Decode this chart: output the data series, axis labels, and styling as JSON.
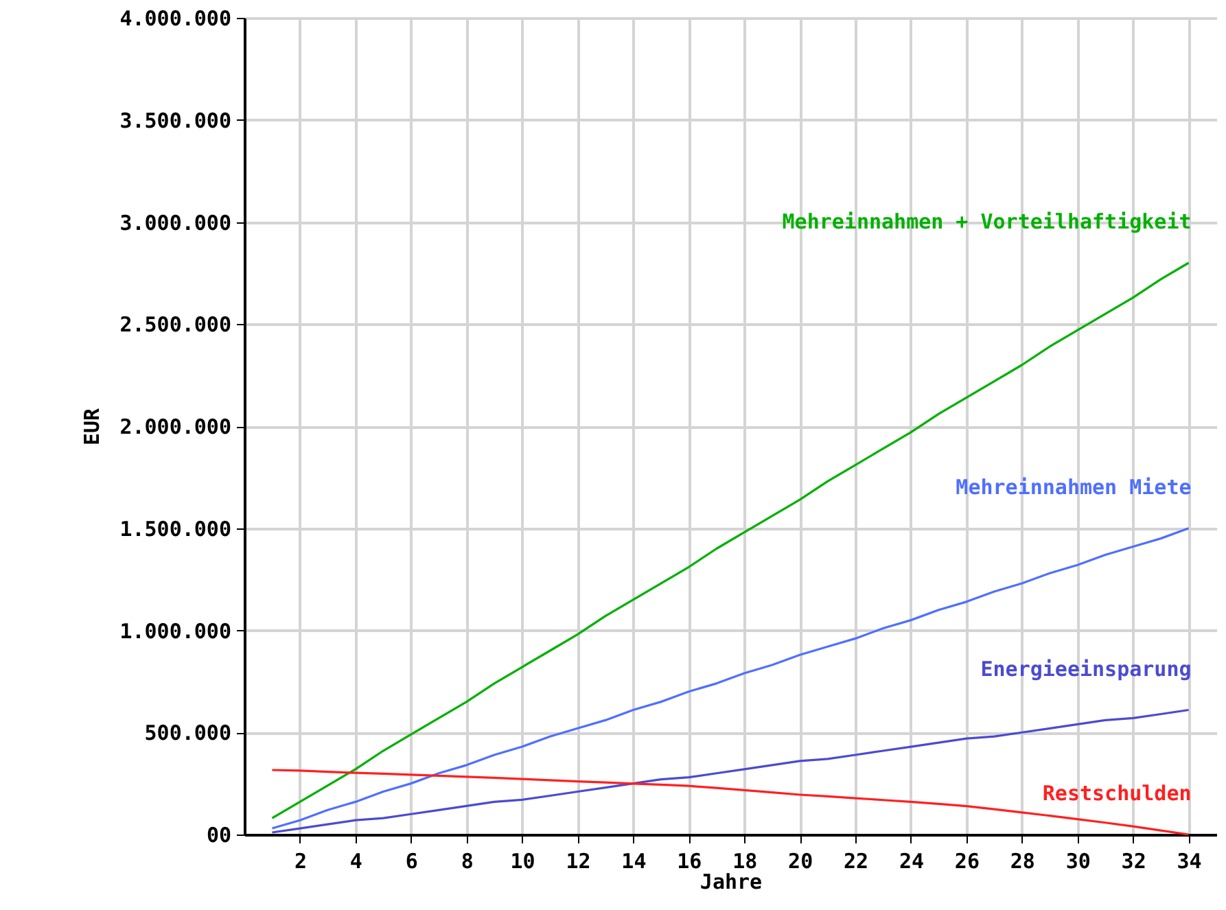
{
  "chart_data": {
    "type": "line",
    "xlabel": "Jahre",
    "ylabel": "EUR",
    "x": [
      1,
      2,
      3,
      4,
      5,
      6,
      7,
      8,
      9,
      10,
      11,
      12,
      13,
      14,
      15,
      16,
      17,
      18,
      19,
      20,
      21,
      22,
      23,
      24,
      25,
      26,
      27,
      28,
      29,
      30,
      31,
      32,
      33,
      34
    ],
    "series": [
      {
        "name": "Mehreinnahmen + Vorteilhaftigkeit",
        "color": "#00b000",
        "values": [
          80000,
          160000,
          240000,
          320000,
          410000,
          490000,
          570000,
          650000,
          740000,
          820000,
          900000,
          980000,
          1070000,
          1150000,
          1230000,
          1310000,
          1400000,
          1480000,
          1560000,
          1640000,
          1730000,
          1810000,
          1890000,
          1970000,
          2060000,
          2140000,
          2220000,
          2300000,
          2390000,
          2470000,
          2550000,
          2630000,
          2720000,
          2800000
        ]
      },
      {
        "name": "Mehreinnahmen Miete",
        "color": "#4f6fff",
        "values": [
          30000,
          70000,
          120000,
          160000,
          210000,
          250000,
          300000,
          340000,
          390000,
          430000,
          480000,
          520000,
          560000,
          610000,
          650000,
          700000,
          740000,
          790000,
          830000,
          880000,
          920000,
          960000,
          1010000,
          1050000,
          1100000,
          1140000,
          1190000,
          1230000,
          1280000,
          1320000,
          1370000,
          1410000,
          1450000,
          1500000
        ]
      },
      {
        "name": "Energieeinsparung",
        "color": "#4b4bd0",
        "values": [
          10000,
          30000,
          50000,
          70000,
          80000,
          100000,
          120000,
          140000,
          160000,
          170000,
          190000,
          210000,
          230000,
          250000,
          270000,
          280000,
          300000,
          320000,
          340000,
          360000,
          370000,
          390000,
          410000,
          430000,
          450000,
          470000,
          480000,
          500000,
          520000,
          540000,
          560000,
          570000,
          590000,
          610000
        ]
      },
      {
        "name": "Restschulden",
        "color": "#ff2020",
        "values": [
          316000,
          313000,
          307000,
          302000,
          298000,
          293000,
          288000,
          283000,
          278000,
          272000,
          266000,
          260000,
          255000,
          249000,
          244000,
          238000,
          228000,
          217000,
          206000,
          195000,
          187000,
          178000,
          169000,
          160000,
          150000,
          139000,
          124000,
          108000,
          92000,
          75000,
          58000,
          40000,
          20000,
          0
        ]
      }
    ],
    "xlim": [
      0,
      35
    ],
    "xticks": [
      2,
      4,
      6,
      8,
      10,
      12,
      14,
      16,
      18,
      20,
      22,
      24,
      26,
      28,
      30,
      32,
      34
    ],
    "ylim": [
      0,
      4000000
    ],
    "yticks": [
      {
        "value": 0,
        "label": "00"
      },
      {
        "value": 500000,
        "label": "500.000"
      },
      {
        "value": 1000000,
        "label": "1.000.000"
      },
      {
        "value": 1500000,
        "label": "1.500.000"
      },
      {
        "value": 2000000,
        "label": "2.000.000"
      },
      {
        "value": 2500000,
        "label": "2.500.000"
      },
      {
        "value": 3000000,
        "label": "3.000.000"
      },
      {
        "value": 3500000,
        "label": "3.500.000"
      },
      {
        "value": 4000000,
        "label": "4.000.000"
      }
    ],
    "grid": true
  }
}
